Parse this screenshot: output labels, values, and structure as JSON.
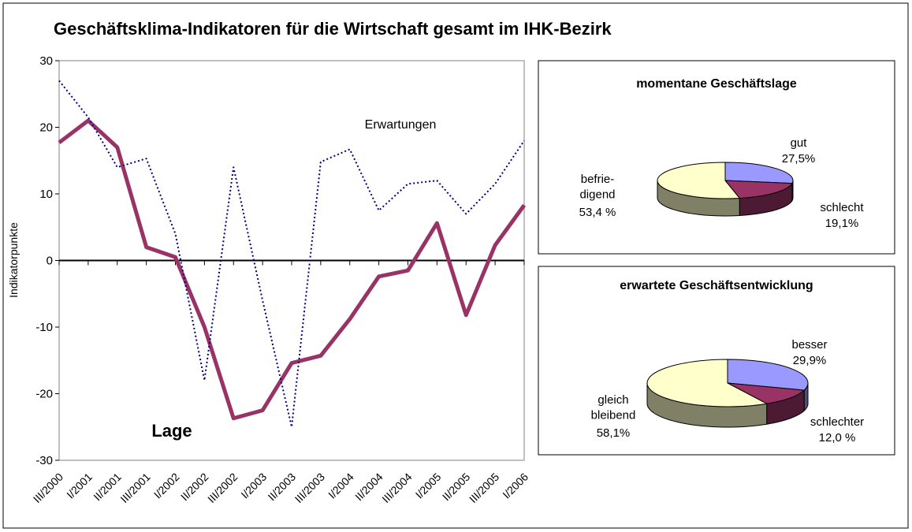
{
  "chart_data": [
    {
      "type": "line",
      "title": "Geschäftsklima-Indikatoren für die Wirtschaft gesamt im IHK-Bezirk",
      "ylabel": "Indikatorpunkte",
      "categories": [
        "III/2000",
        "I/2001",
        "II/2001",
        "III/2001",
        "I/2002",
        "II/2002",
        "III/2002",
        "I/2003",
        "II/2003",
        "III/2003",
        "I/2004",
        "II/2004",
        "III/2004",
        "I/2005",
        "II/2005",
        "III/2005",
        "I/2006"
      ],
      "series": [
        {
          "name": "Lage",
          "color": "#993366",
          "values": [
            17.7,
            21,
            17,
            2,
            0.5,
            -10,
            -23.7,
            -22.5,
            -15.4,
            -14.3,
            -8.8,
            -2.4,
            -1.5,
            5.6,
            -8.2,
            2.3,
            8.3
          ]
        },
        {
          "name": "Erwartungen",
          "color": "#000080",
          "values": [
            27,
            21.5,
            14,
            15.3,
            4,
            -18,
            14,
            -6,
            -25,
            14.8,
            16.7,
            7.5,
            11.5,
            12,
            7,
            11.5,
            18
          ]
        }
      ],
      "ylim": [
        -30,
        30
      ],
      "yticks": [
        -30,
        -20,
        -10,
        0,
        10,
        20,
        30
      ]
    },
    {
      "type": "pie",
      "title": "momentane Geschäftslage",
      "categories": [
        "gut",
        "schlecht",
        "befrie-\ndigend"
      ],
      "values": [
        27.5,
        19.1,
        53.4
      ],
      "value_labels": [
        "27,5%",
        "19,1%",
        "53,4 %"
      ],
      "colors": [
        "#9999ff",
        "#993366",
        "#ffffcc"
      ]
    },
    {
      "type": "pie",
      "title": "erwartete Geschäftsentwicklung",
      "categories": [
        "besser",
        "schlechter",
        "gleich\nbleibend"
      ],
      "values": [
        29.9,
        12.0,
        58.1
      ],
      "value_labels": [
        "29,9%",
        "12,0 %",
        "58,1%"
      ],
      "colors": [
        "#9999ff",
        "#993366",
        "#ffffcc"
      ]
    }
  ]
}
